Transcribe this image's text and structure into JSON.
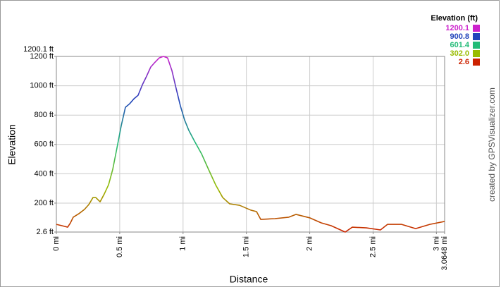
{
  "chart_data": {
    "type": "line",
    "xlabel": "Distance",
    "ylabel": "Elevation",
    "credit": "created by GPSVisualizer.com",
    "xlim": [
      0,
      3.0648
    ],
    "ylim": [
      2.6,
      1200.1
    ],
    "xticks": [
      {
        "value": 0,
        "label": "0 mi"
      },
      {
        "value": 0.5,
        "label": "0.5 mi"
      },
      {
        "value": 1,
        "label": "1 mi"
      },
      {
        "value": 1.5,
        "label": "1.5 mi"
      },
      {
        "value": 2,
        "label": "2 mi"
      },
      {
        "value": 2.5,
        "label": "2.5 mi"
      },
      {
        "value": 3,
        "label": "3 mi"
      },
      {
        "value": 3.0648,
        "label": "3.0648 mi"
      }
    ],
    "yticks": [
      {
        "value": 2.6,
        "label": "2.6 ft"
      },
      {
        "value": 200,
        "label": "200 ft"
      },
      {
        "value": 400,
        "label": "400 ft"
      },
      {
        "value": 600,
        "label": "600 ft"
      },
      {
        "value": 800,
        "label": "800 ft"
      },
      {
        "value": 1000,
        "label": "1000 ft"
      },
      {
        "value": 1200,
        "label": "1200 ft"
      },
      {
        "value": 1200.1,
        "label": "1200.1 ft"
      }
    ],
    "grid": true,
    "color_scale": {
      "title": "Elevation (ft)",
      "stops": [
        {
          "value": 1200.1,
          "label": "1200.1",
          "color": "#cc22cc"
        },
        {
          "value": 900.8,
          "label": "900.8",
          "color": "#2244bb"
        },
        {
          "value": 601.4,
          "label": "601.4",
          "color": "#22bb77"
        },
        {
          "value": 302.0,
          "label": "302.0",
          "color": "#99bb00"
        },
        {
          "value": 2.6,
          "label": "2.6",
          "color": "#cc2200"
        }
      ]
    },
    "x": [
      0,
      0.044,
      0.089,
      0.111,
      0.133,
      0.178,
      0.222,
      0.256,
      0.289,
      0.311,
      0.345,
      0.378,
      0.412,
      0.445,
      0.478,
      0.512,
      0.545,
      0.578,
      0.612,
      0.645,
      0.679,
      0.712,
      0.745,
      0.779,
      0.812,
      0.845,
      0.878,
      0.912,
      0.945,
      0.979,
      1.012,
      1.046,
      1.09,
      1.146,
      1.201,
      1.257,
      1.313,
      1.368,
      1.446,
      1.535,
      1.58,
      1.613,
      1.724,
      1.835,
      1.891,
      2.002,
      2.091,
      2.169,
      2.28,
      2.336,
      2.447,
      2.558,
      2.614,
      2.725,
      2.836,
      2.948,
      3.0648
    ],
    "values": [
      55,
      46,
      36,
      65,
      104,
      128,
      157,
      190,
      238,
      238,
      209,
      262,
      325,
      430,
      575,
      728,
      853,
      877,
      911,
      935,
      1007,
      1065,
      1128,
      1161,
      1190,
      1200.1,
      1190,
      1104,
      983,
      863,
      767,
      695,
      623,
      536,
      430,
      325,
      238,
      195,
      185,
      152,
      142,
      89,
      94,
      104,
      123,
      99,
      65,
      46,
      2.6,
      36,
      31,
      17,
      55,
      55,
      26,
      55,
      75
    ]
  }
}
